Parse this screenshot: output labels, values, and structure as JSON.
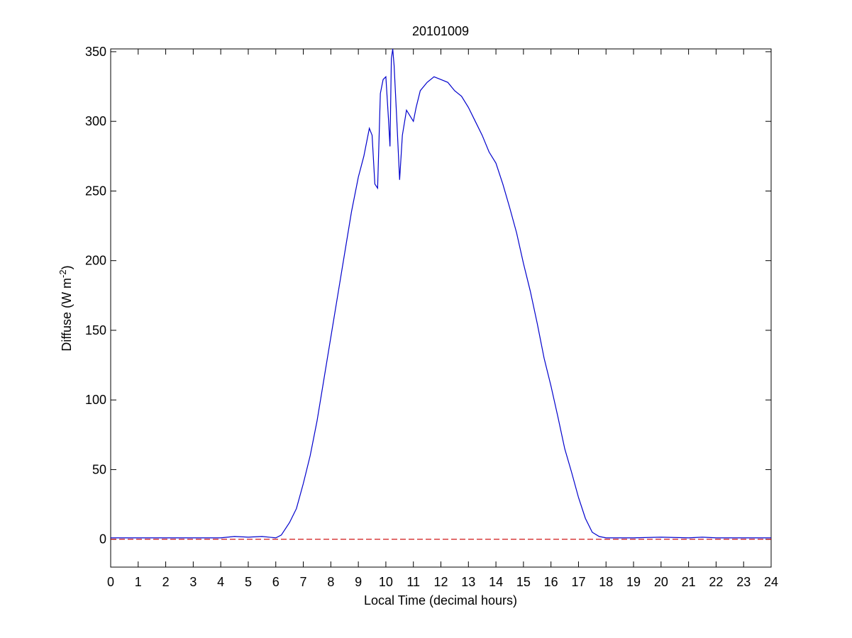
{
  "chart_data": {
    "type": "line",
    "title": "20101009",
    "xlabel": "Local Time (decimal hours)",
    "ylabel": {
      "text": "Diffuse (W m",
      "superscript": "-2",
      "suffix": ")"
    },
    "xlim": [
      0,
      24
    ],
    "ylim": [
      -20,
      352
    ],
    "xticks": [
      0,
      1,
      2,
      3,
      4,
      5,
      6,
      7,
      8,
      9,
      10,
      11,
      12,
      13,
      14,
      15,
      16,
      17,
      18,
      19,
      20,
      21,
      22,
      23,
      24
    ],
    "yticks": [
      0,
      50,
      100,
      150,
      200,
      250,
      300,
      350
    ],
    "series": [
      {
        "color": "#0000cc",
        "dash": false,
        "x": [
          0,
          4,
          4.5,
          5,
          5.5,
          6,
          6.2,
          6.5,
          6.75,
          7,
          7.25,
          7.5,
          7.75,
          8,
          8.25,
          8.5,
          8.75,
          9,
          9.2,
          9.4,
          9.5,
          9.6,
          9.7,
          9.8,
          9.9,
          10,
          10.1,
          10.15,
          10.2,
          10.25,
          10.3,
          10.4,
          10.5,
          10.6,
          10.75,
          11,
          11.1,
          11.25,
          11.5,
          11.75,
          12,
          12.25,
          12.5,
          12.75,
          13,
          13.25,
          13.5,
          13.75,
          14,
          14.25,
          14.5,
          14.75,
          15,
          15.25,
          15.5,
          15.75,
          16,
          16.25,
          16.5,
          16.75,
          17,
          17.25,
          17.5,
          17.75,
          18,
          19,
          20,
          21,
          21.5,
          22,
          24
        ],
        "values": [
          1,
          1,
          2,
          1.5,
          2,
          1,
          3,
          12,
          22,
          40,
          60,
          85,
          115,
          145,
          175,
          205,
          235,
          260,
          275,
          295,
          290,
          255,
          252,
          320,
          330,
          332,
          300,
          282,
          345,
          352,
          340,
          300,
          258,
          290,
          308,
          300,
          310,
          322,
          328,
          332,
          330,
          328,
          322,
          318,
          310,
          300,
          290,
          278,
          270,
          255,
          238,
          220,
          198,
          178,
          155,
          130,
          110,
          88,
          65,
          48,
          30,
          15,
          5,
          2,
          1,
          1,
          1.5,
          1,
          1.5,
          1,
          1
        ]
      },
      {
        "color": "#cc0000",
        "dash": true,
        "x": [
          0,
          24
        ],
        "values": [
          0,
          0
        ]
      }
    ]
  }
}
